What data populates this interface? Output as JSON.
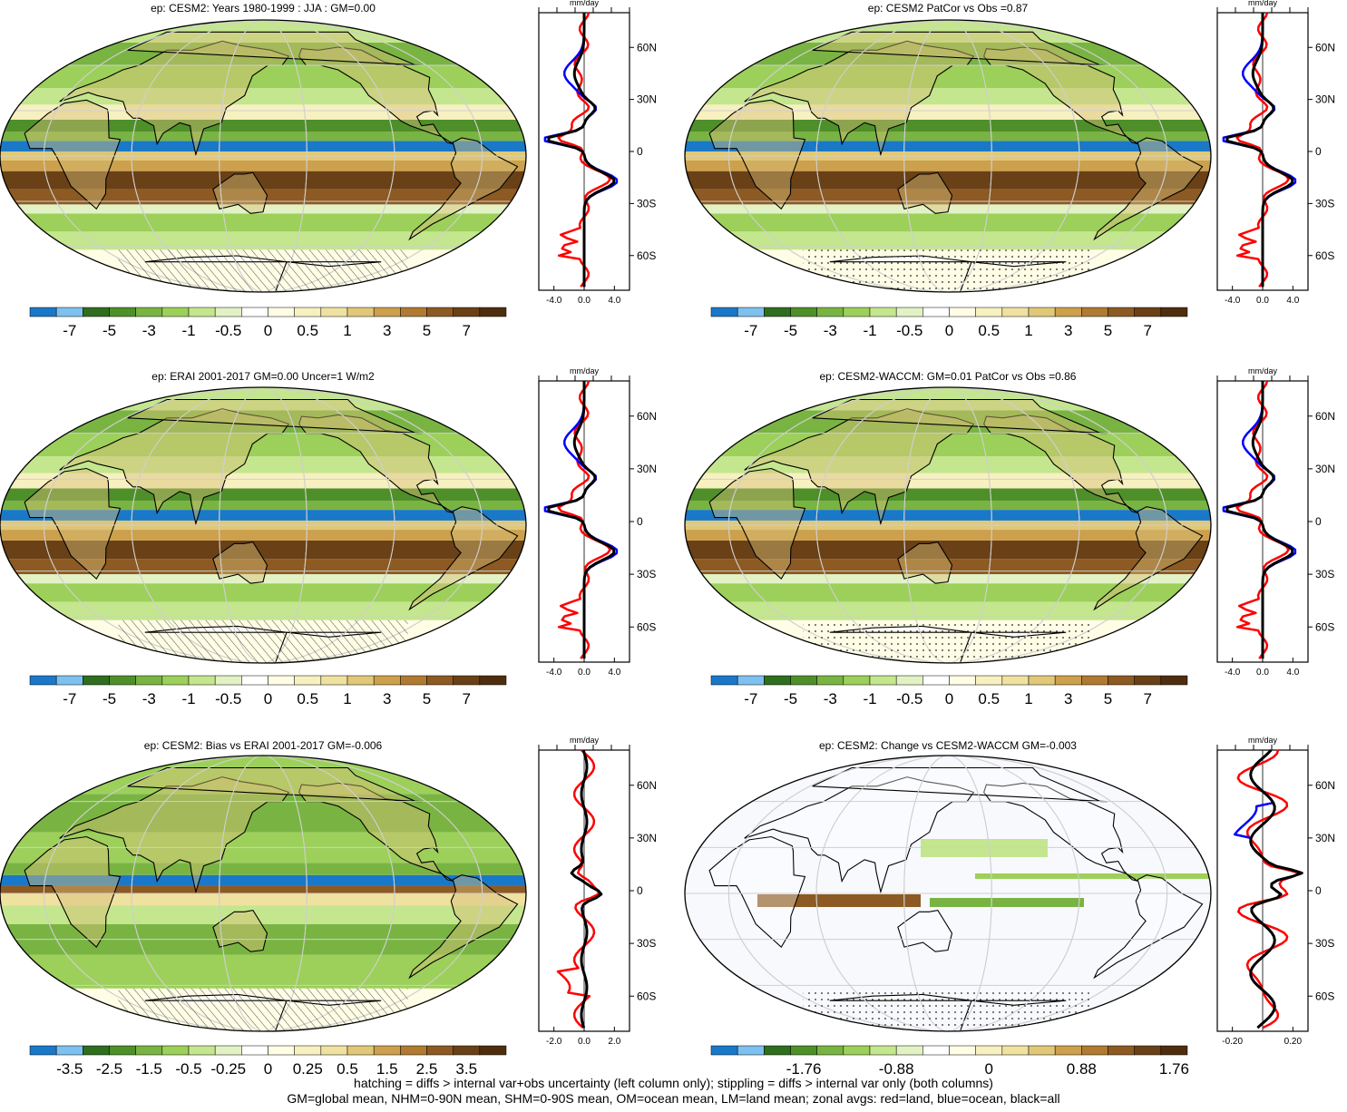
{
  "panels": [
    {
      "title": "ep: CESM2: Years 1980-1999 : JJA : GM=0.00",
      "colorbar_labels": [
        "-7",
        "-5",
        "-3",
        "-1",
        "-0.5",
        "0",
        "0.5",
        "1",
        "3",
        "5",
        "7"
      ],
      "zonal_unit": "mm/day",
      "zonal_xticks": [
        "-4.0",
        "0.0",
        "4.0"
      ],
      "zonal_xrange": [
        -6,
        6
      ],
      "lat_labels": [
        "60N",
        "30N",
        "0",
        "30S",
        "60S"
      ],
      "style": "mean",
      "hatching": true
    },
    {
      "title": "ep: CESM2 PatCor vs Obs =0.87",
      "colorbar_labels": [
        "-7",
        "-5",
        "-3",
        "-1",
        "-0.5",
        "0",
        "0.5",
        "1",
        "3",
        "5",
        "7"
      ],
      "zonal_unit": "mm/day",
      "zonal_xticks": [
        "-4.0",
        "0.0",
        "4.0"
      ],
      "zonal_xrange": [
        -6,
        6
      ],
      "lat_labels": [
        "60N",
        "30N",
        "0",
        "30S",
        "60S"
      ],
      "style": "mean",
      "hatching": false
    },
    {
      "title": "ep: ERAI 2001-2017 GM=0.00 Uncer=1 W/m2",
      "colorbar_labels": [
        "-7",
        "-5",
        "-3",
        "-1",
        "-0.5",
        "0",
        "0.5",
        "1",
        "3",
        "5",
        "7"
      ],
      "zonal_unit": "mm/day",
      "zonal_xticks": [
        "-4.0",
        "0.0",
        "4.0"
      ],
      "zonal_xrange": [
        -6,
        6
      ],
      "lat_labels": [
        "60N",
        "30N",
        "0",
        "30S",
        "60S"
      ],
      "style": "mean",
      "hatching": true
    },
    {
      "title": "ep: CESM2-WACCM: GM=0.01 PatCor vs Obs =0.86",
      "colorbar_labels": [
        "-7",
        "-5",
        "-3",
        "-1",
        "-0.5",
        "0",
        "0.5",
        "1",
        "3",
        "5",
        "7"
      ],
      "zonal_unit": "mm/day",
      "zonal_xticks": [
        "-4.0",
        "0.0",
        "4.0"
      ],
      "zonal_xrange": [
        -6,
        6
      ],
      "lat_labels": [
        "60N",
        "30N",
        "0",
        "30S",
        "60S"
      ],
      "style": "mean",
      "hatching": false
    },
    {
      "title": "ep: CESM2: Bias vs ERAI 2001-2017 GM=-0.006",
      "colorbar_labels": [
        "-3.5",
        "-2.5",
        "-1.5",
        "-0.5",
        "-0.25",
        "0",
        "0.25",
        "0.5",
        "1.5",
        "2.5",
        "3.5"
      ],
      "zonal_unit": "mm/day",
      "zonal_xticks": [
        "-2.0",
        "0.0",
        "2.0"
      ],
      "zonal_xrange": [
        -3,
        3
      ],
      "lat_labels": [
        "60N",
        "30N",
        "0",
        "30S",
        "60S"
      ],
      "style": "bias",
      "hatching": true
    },
    {
      "title": "ep: CESM2: Change vs CESM2-WACCM GM=-0.003",
      "colorbar_labels": [
        "-1.76",
        "-0.88",
        "0",
        "0.88",
        "1.76"
      ],
      "zonal_unit": "mm/day",
      "zonal_xticks": [
        "-0.20",
        "0.20"
      ],
      "zonal_xrange": [
        -0.3,
        0.3
      ],
      "lat_labels": [
        "60N",
        "30N",
        "0",
        "30S",
        "60S"
      ],
      "style": "change",
      "hatching": false
    }
  ],
  "colorbar_colors": [
    "#1a78c8",
    "#7ec0ee",
    "#2e6e1e",
    "#4f8f2a",
    "#79b443",
    "#9cd05a",
    "#c4e68e",
    "#e2f2c4",
    "#ffffff",
    "#fffde6",
    "#f7f0c0",
    "#efe1a0",
    "#e0c878",
    "#cca04c",
    "#b07a32",
    "#8c5a22",
    "#6a4016",
    "#4e2e0e"
  ],
  "zonal_series": [
    {
      "name": "land",
      "color": "#ff0000"
    },
    {
      "name": "ocean",
      "color": "#0000ff"
    },
    {
      "name": "all",
      "color": "#000000"
    }
  ],
  "footer": [
    "hatching = diffs > internal var+obs uncertainty (left column only); stippling = diffs > internal var only (both columns)",
    "GM=global mean, NHM=0-90N mean, SHM=0-90S mean, OM=ocean mean, LM=land mean; zonal avgs: red=land, blue=ocean, black=all"
  ]
}
